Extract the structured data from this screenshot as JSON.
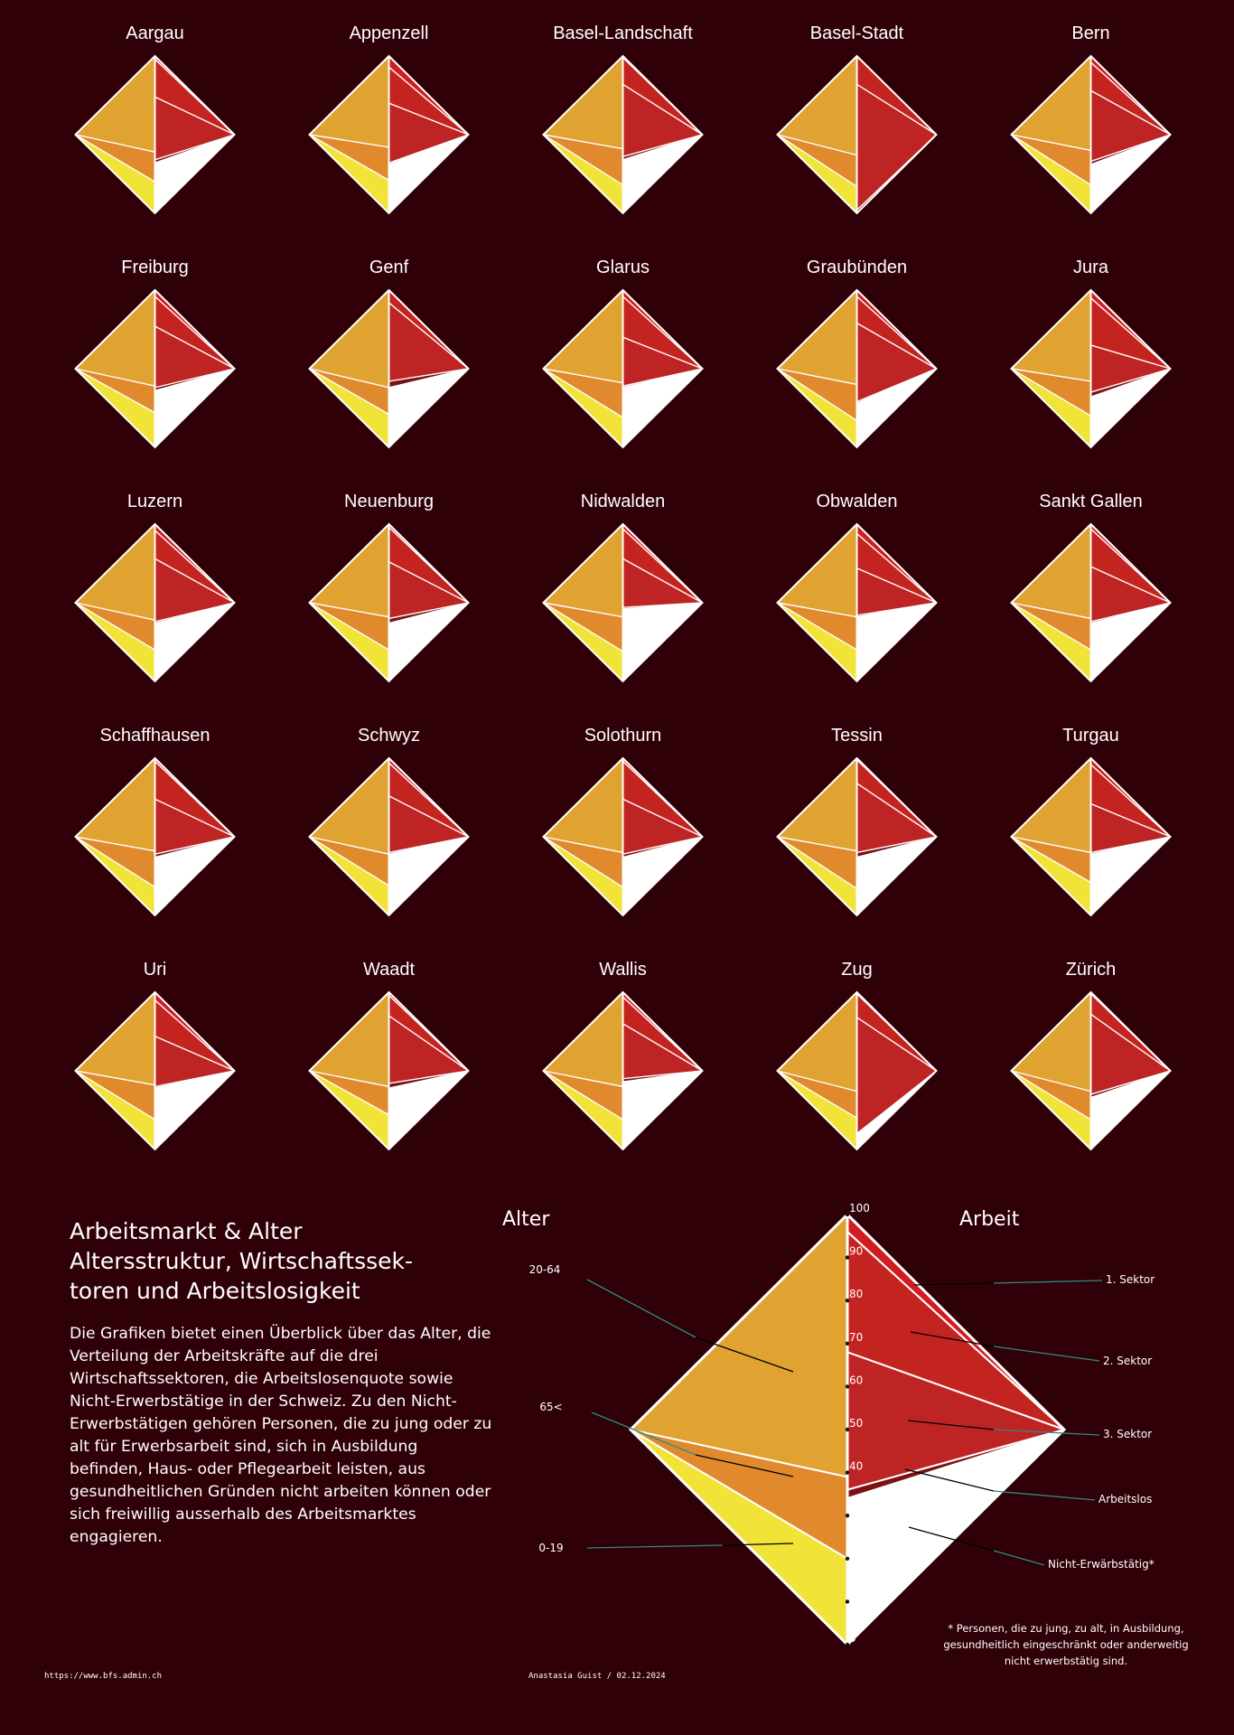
{
  "colors": {
    "background": "#2f0007",
    "age_20_64": "#e0a230",
    "age_65_plus": "#f2e338",
    "age_0_19": "#e08a2d",
    "sector_1": "#d11c20",
    "sector_2": "#c4241f",
    "sector_3": "#be2424",
    "unemployed": "#7a1115",
    "non_employed": "#ffffff"
  },
  "chart_data": {
    "type": "diamond-small-multiples",
    "cantons": [
      {
        "name": "Aargau",
        "age_0_19": 20,
        "age_20_64": 61,
        "age_65_plus": 19,
        "sector_1": 2,
        "sector_2": 24,
        "sector_3": 40,
        "unemployed": 2,
        "non_employed": 32
      },
      {
        "name": "Appenzell",
        "age_0_19": 21,
        "age_20_64": 58,
        "age_65_plus": 21,
        "sector_1": 7,
        "sector_2": 23,
        "sector_3": 38,
        "unemployed": 1,
        "non_employed": 31
      },
      {
        "name": "Basel-Landschaft",
        "age_0_19": 18,
        "age_20_64": 59,
        "age_65_plus": 23,
        "sector_1": 1,
        "sector_2": 17,
        "sector_3": 46,
        "unemployed": 2,
        "non_employed": 34
      },
      {
        "name": "Basel-Stadt",
        "age_0_19": 17,
        "age_20_64": 63,
        "age_65_plus": 20,
        "sector_1": 0,
        "sector_2": 18,
        "sector_3": 80,
        "unemployed": 2,
        "non_employed": 0
      },
      {
        "name": "Bern",
        "age_0_19": 18,
        "age_20_64": 60,
        "age_65_plus": 22,
        "sector_1": 4,
        "sector_2": 18,
        "sector_3": 45,
        "unemployed": 2,
        "non_employed": 31
      },
      {
        "name": "Freiburg",
        "age_0_19": 22,
        "age_20_64": 61,
        "age_65_plus": 17,
        "sector_1": 4,
        "sector_2": 19,
        "sector_3": 39,
        "unemployed": 2,
        "non_employed": 36
      },
      {
        "name": "Genf",
        "age_0_19": 21,
        "age_20_64": 62,
        "age_65_plus": 17,
        "sector_1": 0,
        "sector_2": 8,
        "sector_3": 50,
        "unemployed": 4,
        "non_employed": 38
      },
      {
        "name": "Glarus",
        "age_0_19": 19,
        "age_20_64": 59,
        "age_65_plus": 22,
        "sector_1": 4,
        "sector_2": 26,
        "sector_3": 31,
        "unemployed": 1,
        "non_employed": 38
      },
      {
        "name": "Graubünden",
        "age_0_19": 17,
        "age_20_64": 60,
        "age_65_plus": 23,
        "sector_1": 4,
        "sector_2": 17,
        "sector_3": 50,
        "unemployed": 1,
        "non_employed": 28
      },
      {
        "name": "Jura",
        "age_0_19": 20,
        "age_20_64": 58,
        "age_65_plus": 22,
        "sector_1": 5,
        "sector_2": 30,
        "sector_3": 30,
        "unemployed": 3,
        "non_employed": 32
      },
      {
        "name": "Luzern",
        "age_0_19": 20,
        "age_20_64": 61,
        "age_65_plus": 19,
        "sector_1": 4,
        "sector_2": 18,
        "sector_3": 40,
        "unemployed": 1,
        "non_employed": 37
      },
      {
        "name": "Neuenburg",
        "age_0_19": 20,
        "age_20_64": 59,
        "age_65_plus": 21,
        "sector_1": 2,
        "sector_2": 22,
        "sector_3": 36,
        "unemployed": 3,
        "non_employed": 37
      },
      {
        "name": "Nidwalden",
        "age_0_19": 19,
        "age_20_64": 59,
        "age_65_plus": 22,
        "sector_1": 3,
        "sector_2": 19,
        "sector_3": 31,
        "unemployed": 1,
        "non_employed": 46
      },
      {
        "name": "Obwalden",
        "age_0_19": 20,
        "age_20_64": 59,
        "age_65_plus": 21,
        "sector_1": 6,
        "sector_2": 22,
        "sector_3": 30,
        "unemployed": 1,
        "non_employed": 41
      },
      {
        "name": "Sankt Gallen",
        "age_0_19": 20,
        "age_20_64": 60,
        "age_65_plus": 20,
        "sector_1": 3,
        "sector_2": 24,
        "sector_3": 35,
        "unemployed": 1,
        "non_employed": 37
      },
      {
        "name": "Schaffhausen",
        "age_0_19": 18,
        "age_20_64": 59,
        "age_65_plus": 23,
        "sector_1": 2,
        "sector_2": 24,
        "sector_3": 35,
        "unemployed": 2,
        "non_employed": 37
      },
      {
        "name": "Schwyz",
        "age_0_19": 19,
        "age_20_64": 61,
        "age_65_plus": 20,
        "sector_1": 3,
        "sector_2": 21,
        "sector_3": 36,
        "unemployed": 1,
        "non_employed": 39
      },
      {
        "name": "Solothurn",
        "age_0_19": 18,
        "age_20_64": 60,
        "age_65_plus": 22,
        "sector_1": 2,
        "sector_2": 24,
        "sector_3": 35,
        "unemployed": 2,
        "non_employed": 37
      },
      {
        "name": "Tessin",
        "age_0_19": 17,
        "age_20_64": 59,
        "age_65_plus": 24,
        "sector_1": 1,
        "sector_2": 15,
        "sector_3": 44,
        "unemployed": 3,
        "non_employed": 37
      },
      {
        "name": "Turgau",
        "age_0_19": 21,
        "age_20_64": 60,
        "age_65_plus": 19,
        "sector_1": 4,
        "sector_2": 25,
        "sector_3": 31,
        "unemployed": 1,
        "non_employed": 39
      },
      {
        "name": "Uri",
        "age_0_19": 19,
        "age_20_64": 59,
        "age_65_plus": 22,
        "sector_1": 5,
        "sector_2": 23,
        "sector_3": 32,
        "unemployed": 1,
        "non_employed": 39
      },
      {
        "name": "Waadt",
        "age_0_19": 22,
        "age_20_64": 60,
        "age_65_plus": 18,
        "sector_1": 2,
        "sector_2": 13,
        "sector_3": 43,
        "unemployed": 3,
        "non_employed": 39
      },
      {
        "name": "Wallis",
        "age_0_19": 19,
        "age_20_64": 60,
        "age_65_plus": 21,
        "sector_1": 3,
        "sector_2": 17,
        "sector_3": 35,
        "unemployed": 2,
        "non_employed": 43
      },
      {
        "name": "Zug",
        "age_0_19": 20,
        "age_20_64": 63,
        "age_65_plus": 17,
        "sector_1": 1,
        "sector_2": 15,
        "sector_3": 74,
        "unemployed": 1,
        "non_employed": 9
      },
      {
        "name": "Zürich",
        "age_0_19": 19,
        "age_20_64": 63,
        "age_65_plus": 18,
        "sector_1": 1,
        "sector_2": 13,
        "sector_3": 51,
        "unemployed": 2,
        "non_employed": 33
      }
    ],
    "legend_example": {
      "age_0_19": 20,
      "age_20_64": 61,
      "age_65_plus": 19,
      "sector_1": 4,
      "sector_2": 28,
      "sector_3": 32,
      "unemployed": 2,
      "non_employed": 34
    },
    "axis_ticks": [
      "100",
      "90",
      "80",
      "70",
      "60",
      "50",
      "40",
      "30",
      "20",
      "10",
      "0"
    ]
  },
  "legend": {
    "left_title": "Alter",
    "right_title": "Arbeit",
    "age_labels": [
      "20-64",
      "65<",
      "0-19"
    ],
    "work_labels": [
      "1. Sektor",
      "2. Sektor",
      "3. Sektor",
      "Arbeitslos",
      "Nicht-Erwärbstätig*"
    ]
  },
  "text": {
    "headline_lines": [
      "Arbeitsmarkt & Alter",
      "Altersstruktur, Wirtschaftssek-",
      "toren und Arbeitslosigkeit"
    ],
    "description": "Die Grafiken bietet einen Überblick über das Alter, die Verteilung der Arbeitskräfte auf die drei Wirtschaftssektoren, die Arbeitslosenquote sowie Nicht-Erwerbstätige in der Schweiz. Zu den Nicht-Erwerbstätigen gehören Personen, die zu jung oder zu alt für Erwerbsarbeit sind, sich in Ausbildung befinden, Haus- oder Pflegearbeit leisten, aus gesundheitlichen Gründen nicht arbeiten können oder sich freiwillig ausserhalb des Arbeitsmarktes engagieren.",
    "footnote": "* Personen, die zu jung, zu alt, in Ausbildung,\ngesundheitlich eingeschränkt oder anderweitig\nnicht erwerbstätig sind.",
    "footer_url": "https://www.bfs.admin.ch",
    "footer_credit": "Anastasia Guist / 02.12.2024"
  }
}
